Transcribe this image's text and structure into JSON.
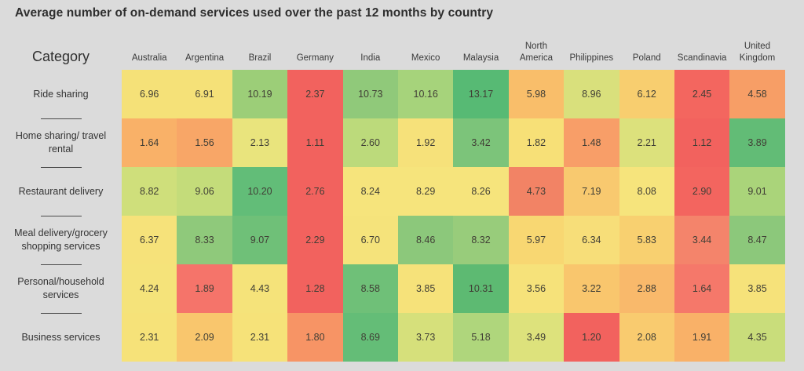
{
  "title": "Average number of on-demand services used over the past 12 months by country",
  "category_header": "Category",
  "colors": {
    "background": "#DBDBDB",
    "scale_low": "#F2625E",
    "scale_mid": "#F6E27A",
    "scale_high": "#57BA74",
    "text": "#2E2E2E"
  },
  "chart_data": {
    "type": "heatmap",
    "title": "Average number of on-demand services used over the past 12 months by country",
    "row_header": "Category",
    "columns": [
      "Australia",
      "Argentina",
      "Brazil",
      "Germany",
      "India",
      "Mexico",
      "Malaysia",
      "North America",
      "Philippines",
      "Poland",
      "Scandinavia",
      "United Kingdom"
    ],
    "rows": [
      {
        "label": "Ride sharing",
        "values": [
          6.96,
          6.91,
          10.19,
          2.37,
          10.73,
          10.16,
          13.17,
          5.98,
          8.96,
          6.12,
          2.45,
          4.58
        ],
        "colors": [
          "#F5E178",
          "#F5E178",
          "#9CCE78",
          "#F2625E",
          "#90C97A",
          "#A6D37B",
          "#57BA74",
          "#F9BE6A",
          "#D9E07C",
          "#F8CE6F",
          "#F3665F",
          "#F79E66"
        ]
      },
      {
        "label": "Home sharing/ travel rental",
        "values": [
          1.64,
          1.56,
          2.13,
          1.11,
          2.6,
          1.92,
          3.42,
          1.82,
          1.48,
          2.21,
          1.12,
          3.89
        ],
        "colors": [
          "#F9B168",
          "#F8A667",
          "#E9E47D",
          "#F2625E",
          "#BCDA7B",
          "#F6E17A",
          "#7CC47A",
          "#F7E077",
          "#F89E68",
          "#DCE17C",
          "#F2625E",
          "#62BC76"
        ]
      },
      {
        "label": "Restaurant delivery",
        "values": [
          8.82,
          9.06,
          10.2,
          2.76,
          8.24,
          8.29,
          8.26,
          4.73,
          7.19,
          8.08,
          2.9,
          9.01
        ],
        "colors": [
          "#CFDF7B",
          "#C4DC7A",
          "#62BD78",
          "#F2625E",
          "#F6E47C",
          "#F6E47C",
          "#F6E47C",
          "#F28365",
          "#F8C96F",
          "#F6E47C",
          "#F3655F",
          "#AAD47A"
        ]
      },
      {
        "label": "Meal delivery/grocery shopping services",
        "values": [
          6.37,
          8.33,
          9.07,
          2.29,
          6.7,
          8.46,
          8.32,
          5.97,
          6.34,
          5.83,
          3.44,
          8.47
        ],
        "colors": [
          "#F6E27A",
          "#8FC97B",
          "#6FC078",
          "#F2625E",
          "#F5E37B",
          "#8CC87B",
          "#98CC7B",
          "#F8D772",
          "#F7DE79",
          "#F8D070",
          "#F4846B",
          "#8CC87B"
        ]
      },
      {
        "label": "Personal/household services",
        "values": [
          4.24,
          1.89,
          4.43,
          1.28,
          8.58,
          3.85,
          10.31,
          3.56,
          3.22,
          2.88,
          1.64,
          3.85
        ],
        "colors": [
          "#F5E37A",
          "#F5746A",
          "#F5E37A",
          "#F2625E",
          "#6FC078",
          "#F6E27A",
          "#5DBA72",
          "#F6E27A",
          "#F9C66D",
          "#F9B96B",
          "#F5786A",
          "#F6E27A"
        ]
      },
      {
        "label": "Business services",
        "values": [
          2.31,
          2.09,
          2.31,
          1.8,
          8.69,
          3.73,
          5.18,
          3.49,
          1.2,
          2.08,
          1.91,
          4.35
        ],
        "colors": [
          "#F6E279",
          "#F9C66D",
          "#F6E279",
          "#F79465",
          "#64BD77",
          "#D6E07B",
          "#AFD67C",
          "#DDE27C",
          "#F2625E",
          "#F9CB6F",
          "#F9B168",
          "#C9DD7B"
        ]
      }
    ],
    "colormap": "red-yellow-green per-row (low=red #F2625E, mid=yellow #F6E27A, high=green #57BA74)",
    "value_range": [
      1.11,
      13.17
    ],
    "legend": "none",
    "grid": "contiguous colored cells, no gaps"
  }
}
